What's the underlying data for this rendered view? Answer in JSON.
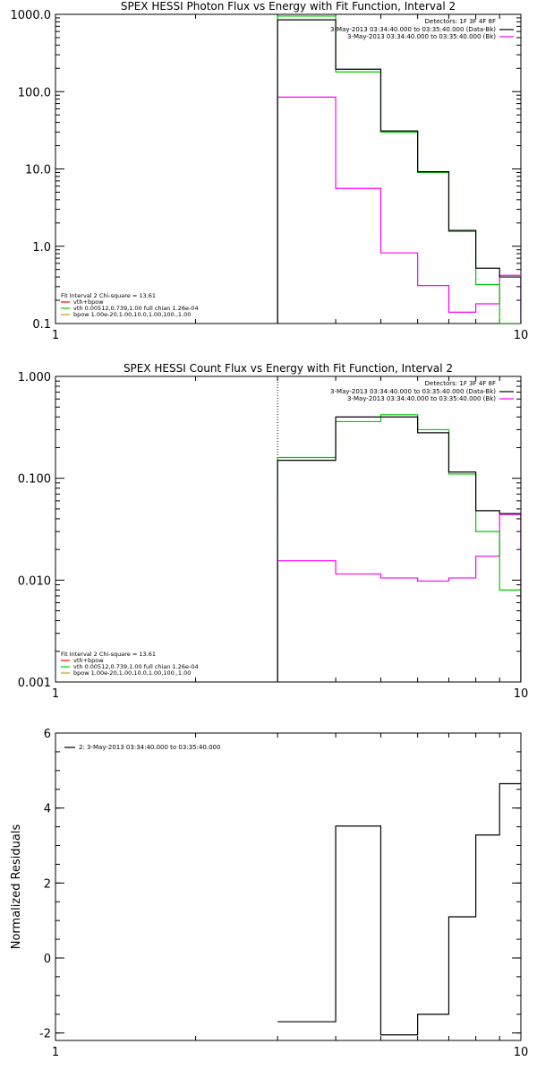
{
  "colors": {
    "data": "#000000",
    "fit": "#00cc00",
    "bk": "#ff00ff",
    "vth": "#ff0000",
    "bpow": "#c8a000",
    "axis": "#000000"
  },
  "chart_data": [
    {
      "type": "line",
      "title": "SPEX HESSI Photon Flux vs Energy with Fit Function, Interval 2",
      "xscale": "log",
      "yscale": "log",
      "xlim": [
        1,
        10
      ],
      "ylim": [
        0.1,
        1000
      ],
      "xticks": [
        {
          "v": 1,
          "label": "1"
        },
        {
          "v": 10,
          "label": "10"
        }
      ],
      "yticks": [
        {
          "v": 1000,
          "label": "1000.0"
        },
        {
          "v": 100,
          "label": "100.0"
        },
        {
          "v": 10,
          "label": "10.0"
        },
        {
          "v": 1,
          "label": "1.0"
        },
        {
          "v": 0.1,
          "label": "0.1"
        }
      ],
      "vline_x": 3,
      "legend_top": {
        "header": "Detectors: 1F 3F 4F 8F",
        "entries": [
          {
            "text": "3-May-2013 03:34:40.000 to 03:35:40.000 (Data-Bk)",
            "color": "#000000"
          },
          {
            "text": "3-May-2013 03:34:40.000 to 03:35:40.000 (Bk)",
            "color": "#ff00ff"
          }
        ]
      },
      "legend_bottom": {
        "header": "Fit Interval 2   Chi-square = 13.61",
        "entries": [
          {
            "text": "vth+bpow",
            "color": "#ff0000"
          },
          {
            "text": "vth 0.00512,0.739,1.00  full chian 1.26e-04",
            "color": "#00cc00"
          },
          {
            "text": "bpow 1.00e-20,1.00,10.0,1.00,100.,1.00",
            "color": "#c8a000"
          }
        ]
      },
      "series": [
        {
          "role": "data",
          "edges": [
            3,
            4,
            5,
            6,
            7,
            8,
            9,
            10
          ],
          "values": [
            850,
            195,
            31,
            9.2,
            1.6,
            0.52,
            0.4
          ]
        },
        {
          "role": "fit",
          "edges": [
            3,
            4,
            5,
            6,
            7,
            8,
            9,
            10
          ],
          "values": [
            950,
            180,
            30,
            9.0,
            1.55,
            0.32,
            0.1
          ]
        },
        {
          "role": "bk",
          "edges": [
            3,
            4,
            5,
            6,
            7,
            8,
            9,
            10
          ],
          "values": [
            85,
            5.6,
            0.82,
            0.31,
            0.14,
            0.18,
            0.42
          ]
        }
      ]
    },
    {
      "type": "line",
      "title": "SPEX HESSI Count Flux vs Energy with Fit Function, Interval 2",
      "xscale": "log",
      "yscale": "log",
      "xlim": [
        1,
        10
      ],
      "ylim": [
        0.001,
        1
      ],
      "xticks": [
        {
          "v": 1,
          "label": "1"
        },
        {
          "v": 10,
          "label": "10"
        }
      ],
      "yticks": [
        {
          "v": 1,
          "label": "1.000"
        },
        {
          "v": 0.1,
          "label": "0.100"
        },
        {
          "v": 0.01,
          "label": "0.010"
        },
        {
          "v": 0.001,
          "label": "0.001"
        }
      ],
      "vline_x": 3,
      "legend_top": {
        "header": "Detectors: 1F 3F 4F 8F",
        "entries": [
          {
            "text": "3-May-2013 03:34:40.000 to 03:35:40.000 (Data-Bk)",
            "color": "#000000"
          },
          {
            "text": "3-May-2013 03:34:40.000 to 03:35:40.000 (Bk)",
            "color": "#ff00ff"
          }
        ]
      },
      "legend_bottom": {
        "header": "Fit Interval 2   Chi-square = 13.61",
        "entries": [
          {
            "text": "vth+bpow",
            "color": "#ff0000"
          },
          {
            "text": "vth 0.00512,0.739,1.00  full chian 1.26e-04",
            "color": "#00cc00"
          },
          {
            "text": "bpow 1.00e-20,1.00,10.0,1.00,100.,1.00",
            "color": "#c8a000"
          }
        ]
      },
      "series": [
        {
          "role": "data",
          "edges": [
            3,
            4,
            5,
            6,
            7,
            8,
            9,
            10
          ],
          "values": [
            0.15,
            0.4,
            0.4,
            0.28,
            0.115,
            0.048,
            0.045
          ]
        },
        {
          "role": "fit",
          "edges": [
            3,
            4,
            5,
            6,
            7,
            8,
            9,
            10
          ],
          "values": [
            0.16,
            0.36,
            0.42,
            0.3,
            0.11,
            0.03,
            0.008
          ]
        },
        {
          "role": "bk",
          "edges": [
            3,
            4,
            5,
            6,
            7,
            8,
            9,
            10
          ],
          "values": [
            0.0155,
            0.0115,
            0.0105,
            0.0098,
            0.0105,
            0.0172,
            0.044
          ]
        }
      ]
    },
    {
      "type": "line",
      "title": "",
      "xscale": "log",
      "yscale": "linear",
      "xlim": [
        1,
        10
      ],
      "ylim": [
        -2.2,
        6
      ],
      "ylabel": "Normalized Residuals",
      "xticks": [
        {
          "v": 1,
          "label": "1"
        },
        {
          "v": 10,
          "label": "10"
        }
      ],
      "yticks": [
        {
          "v": 6,
          "label": "6"
        },
        {
          "v": 4,
          "label": "4"
        },
        {
          "v": 2,
          "label": "2"
        },
        {
          "v": 0,
          "label": "0"
        },
        {
          "v": -2,
          "label": "-2"
        }
      ],
      "legend_top_left": {
        "text": "2: 3-May-2013 03:34:40.000 to 03:35:40.000",
        "color": "#000000"
      },
      "series": [
        {
          "role": "data",
          "edges": [
            3,
            4,
            5,
            6,
            7,
            8,
            9,
            10
          ],
          "values": [
            -1.7,
            3.52,
            -2.05,
            -1.5,
            1.1,
            3.28,
            4.65
          ]
        }
      ]
    }
  ]
}
